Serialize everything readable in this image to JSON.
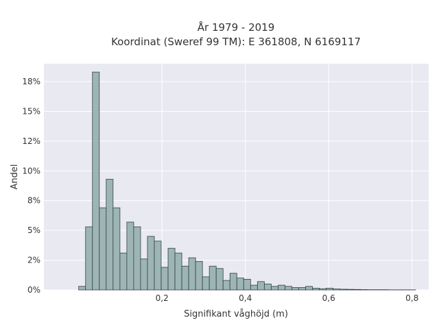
{
  "chart_data": {
    "type": "bar",
    "title_line1": "År 1979 - 2019",
    "title_line2": "Koordinat (Sweref 99 TM): E 361808, N 6169117",
    "xlabel": "Signifikant våghöjd (m)",
    "ylabel": "Andel",
    "xlim": [
      -0.0835,
      0.84
    ],
    "ylim": [
      0,
      0.19
    ],
    "x_ticks": [
      {
        "value": 0.2,
        "label": "0,2"
      },
      {
        "value": 0.4,
        "label": "0,4"
      },
      {
        "value": 0.6,
        "label": "0,6"
      },
      {
        "value": 0.8,
        "label": "0,8"
      }
    ],
    "y_ticks": [
      {
        "value": 0,
        "label": "0%"
      },
      {
        "value": 0.025,
        "label": "2%"
      },
      {
        "value": 0.05,
        "label": "5%"
      },
      {
        "value": 0.075,
        "label": "8%"
      },
      {
        "value": 0.1,
        "label": "10%"
      },
      {
        "value": 0.125,
        "label": "12%"
      },
      {
        "value": 0.15,
        "label": "15%"
      },
      {
        "value": 0.175,
        "label": "18%"
      }
    ],
    "grid": true,
    "bin_width": 0.0165,
    "bins_start": [
      0.0,
      0.0165,
      0.033,
      0.0495,
      0.066,
      0.0825,
      0.099,
      0.1155,
      0.132,
      0.1485,
      0.165,
      0.1815,
      0.198,
      0.2145,
      0.231,
      0.2475,
      0.264,
      0.2805,
      0.297,
      0.3135,
      0.33,
      0.3465,
      0.363,
      0.3795,
      0.396,
      0.4125,
      0.429,
      0.4455,
      0.462,
      0.4785,
      0.495,
      0.5115,
      0.528,
      0.5445,
      0.561,
      0.5775,
      0.594,
      0.6105,
      0.627,
      0.6435,
      0.66,
      0.6765,
      0.693,
      0.7095,
      0.726,
      0.7425,
      0.759,
      0.7755,
      0.792
    ],
    "values": [
      0.003,
      0.053,
      0.183,
      0.069,
      0.093,
      0.069,
      0.031,
      0.057,
      0.053,
      0.026,
      0.045,
      0.041,
      0.019,
      0.035,
      0.031,
      0.02,
      0.027,
      0.024,
      0.011,
      0.02,
      0.018,
      0.008,
      0.014,
      0.01,
      0.009,
      0.004,
      0.007,
      0.005,
      0.003,
      0.004,
      0.003,
      0.002,
      0.002,
      0.003,
      0.0015,
      0.001,
      0.0015,
      0.0008,
      0.0006,
      0.0005,
      0.0004,
      0.0003,
      0.0002,
      0.0002,
      0.0002,
      0.0001,
      0.0001,
      0.0001,
      0.0001
    ],
    "bar_color": "#9eb5b6",
    "bar_edge_color": "#2f4140",
    "plot_bg": "#e9e9f2",
    "grid_color": "#ffffff"
  }
}
